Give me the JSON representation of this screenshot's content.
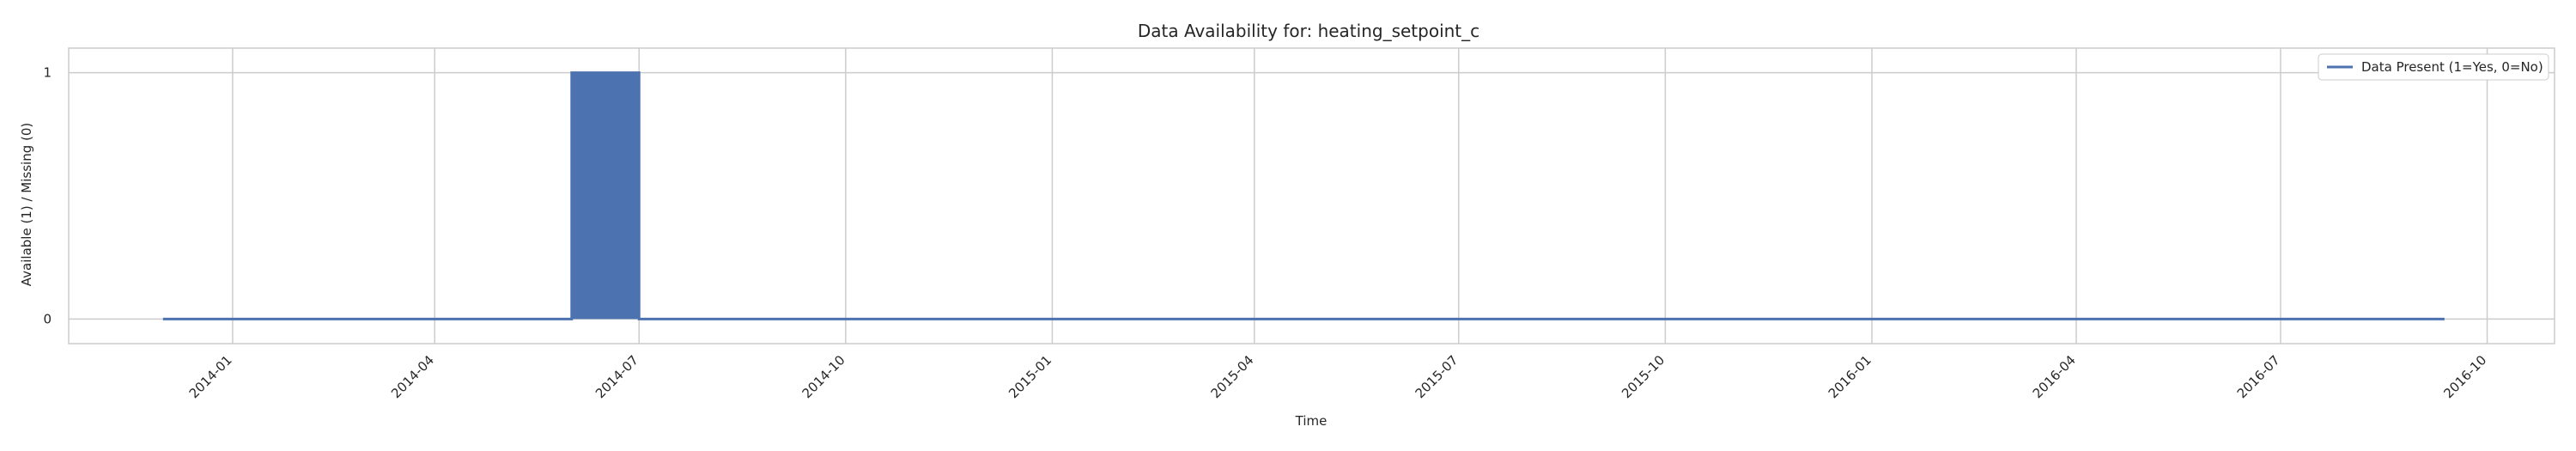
{
  "chart_data": {
    "type": "area",
    "title": "Data Availability for: heating_setpoint_c",
    "xlabel": "Time",
    "ylabel": "Available (1) / Missing (0)",
    "xlim": [
      "2013-10-20",
      "2016-10-31"
    ],
    "ylim": [
      -0.1,
      1.1
    ],
    "x_ticks": [
      "2014-01",
      "2014-04",
      "2014-07",
      "2014-10",
      "2015-01",
      "2015-04",
      "2015-07",
      "2015-10",
      "2016-01",
      "2016-04",
      "2016-07",
      "2016-10"
    ],
    "y_ticks": [
      0,
      1
    ],
    "series": [
      {
        "name": "Data Present (1=Yes, 0=No)",
        "color": "#4c72b0",
        "x": [
          "2013-12-01",
          "2014-06-01",
          "2014-06-01",
          "2014-07-01",
          "2014-07-01",
          "2016-09-12"
        ],
        "values": [
          0,
          0,
          1,
          1,
          0,
          0
        ]
      }
    ],
    "grid": true,
    "legend": "top-right"
  }
}
